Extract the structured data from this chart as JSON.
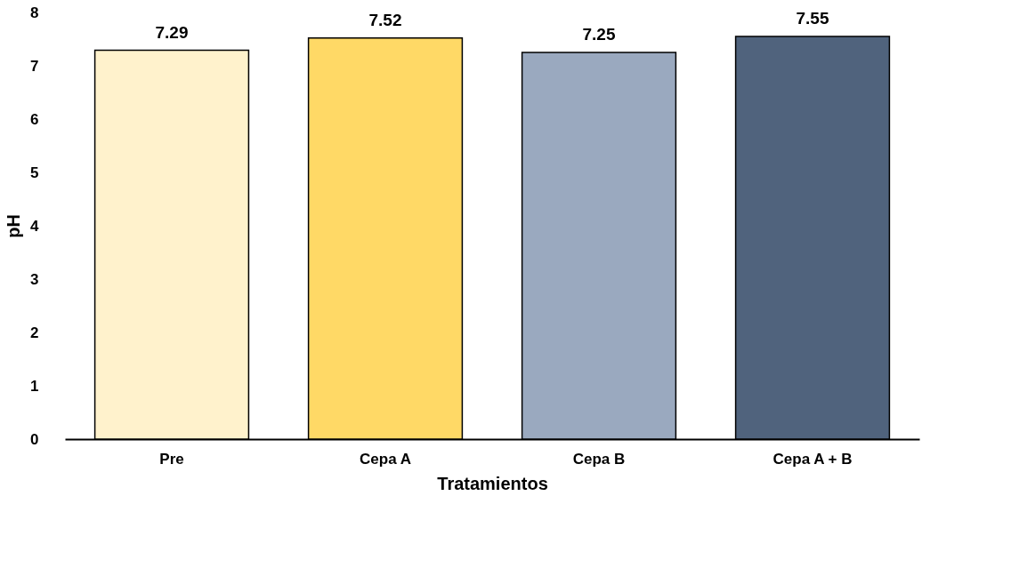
{
  "chart_data": {
    "type": "bar",
    "xlabel": "Tratamientos",
    "ylabel": "pH",
    "categories": [
      "Pre",
      "Cepa A",
      "Cepa B",
      "Cepa A + B"
    ],
    "values": [
      7.29,
      7.52,
      7.25,
      7.55
    ],
    "colors": [
      "#fff2cc",
      "#ffd966",
      "#9aa9bf",
      "#50637d"
    ],
    "ylim": [
      0,
      8
    ],
    "yticks": [
      0,
      1,
      2,
      3,
      4,
      5,
      6,
      7,
      8
    ],
    "data_labels": true,
    "grid": false,
    "legend": false
  }
}
